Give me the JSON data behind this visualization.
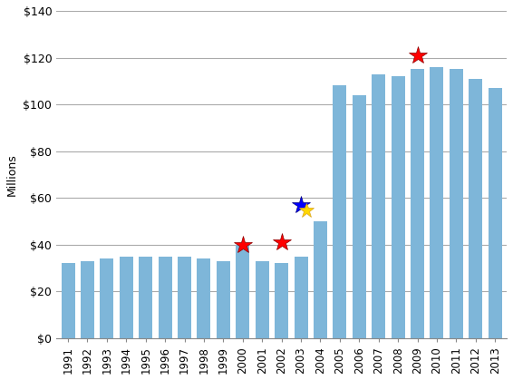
{
  "years": [
    1991,
    1992,
    1993,
    1994,
    1995,
    1996,
    1997,
    1998,
    1999,
    2000,
    2001,
    2002,
    2003,
    2004,
    2005,
    2006,
    2007,
    2008,
    2009,
    2010,
    2011,
    2012,
    2013
  ],
  "bar_values": [
    32,
    33,
    34,
    35,
    35,
    35,
    35,
    34,
    33,
    40,
    33,
    32,
    35,
    50,
    108,
    104,
    113,
    112,
    115,
    116,
    115,
    111,
    107
  ],
  "bar_color": "#7EB6D9",
  "background_color": "#FFFFFF",
  "ylabel": "Millions",
  "ylim": [
    0,
    140
  ],
  "yticks": [
    0,
    20,
    40,
    60,
    80,
    100,
    120,
    140
  ],
  "ytick_labels": [
    "$0",
    "$20",
    "$40",
    "$60",
    "$80",
    "$100",
    "$120",
    "$140"
  ],
  "red_stars": [
    {
      "year_idx": 9,
      "value": 40
    },
    {
      "year_idx": 11,
      "value": 41
    },
    {
      "year_idx": 18,
      "value": 121
    }
  ],
  "blue_star": {
    "year_idx": 12,
    "value": 57
  },
  "gold_star": {
    "year_idx": 12,
    "value": 56
  },
  "grid_color": "#AAAAAA"
}
